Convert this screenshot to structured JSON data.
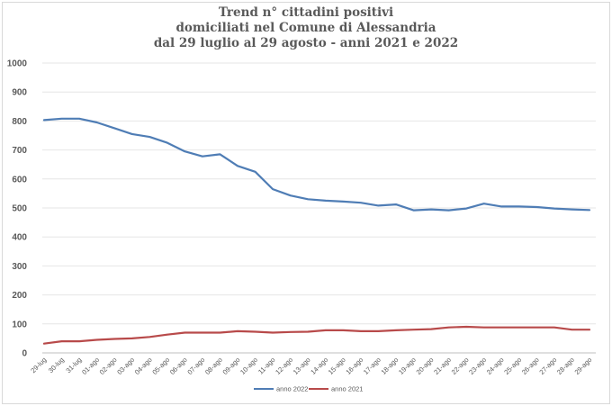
{
  "chart_data": {
    "type": "line",
    "title_lines": [
      "Trend n° cittadini positivi",
      "domiciliati nel Comune di Alessandria",
      "dal 29 luglio al 29 agosto - anni 2021 e 2022"
    ],
    "xlabel": "",
    "ylabel": "",
    "ylim": [
      0,
      1000
    ],
    "yticks": [
      "0",
      "100",
      "200",
      "300",
      "400",
      "500",
      "600",
      "700",
      "800",
      "900",
      "1000"
    ],
    "grid": true,
    "legend_position": "bottom",
    "categories": [
      "29-lug",
      "30-lug",
      "31-lug",
      "01-ago",
      "02-ago",
      "03-ago",
      "04-ago",
      "05-ago",
      "06-ago",
      "07-ago",
      "08-ago",
      "09-ago",
      "10-ago",
      "11-ago",
      "12-ago",
      "13-ago",
      "14-ago",
      "15-ago",
      "16-ago",
      "17-ago",
      "18-ago",
      "19-ago",
      "20-ago",
      "21-ago",
      "22-ago",
      "23-ago",
      "24-ago",
      "25-ago",
      "26-ago",
      "27-ago",
      "28-ago",
      "29-ago"
    ],
    "series": [
      {
        "name": "anno 2022",
        "color": "#4f7db5",
        "values": [
          803,
          808,
          808,
          795,
          775,
          755,
          745,
          725,
          695,
          678,
          685,
          645,
          625,
          565,
          543,
          530,
          525,
          522,
          518,
          508,
          512,
          492,
          495,
          492,
          498,
          515,
          505,
          505,
          503,
          498,
          495,
          493
        ]
      },
      {
        "name": "anno 2021",
        "color": "#b84a4a",
        "values": [
          32,
          40,
          40,
          45,
          48,
          50,
          55,
          63,
          70,
          70,
          70,
          75,
          73,
          70,
          72,
          73,
          78,
          78,
          75,
          75,
          78,
          80,
          82,
          88,
          90,
          88,
          88,
          88,
          88,
          88,
          80,
          80
        ]
      }
    ]
  }
}
